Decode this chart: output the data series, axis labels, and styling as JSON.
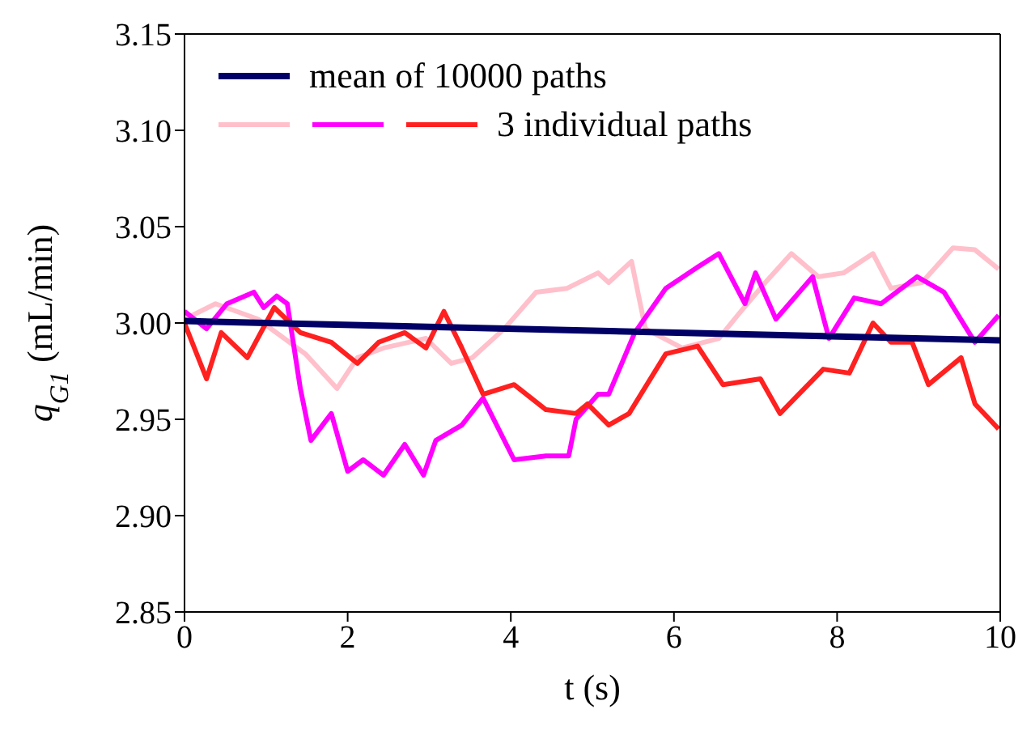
{
  "chart_data": {
    "type": "line",
    "xlabel": "t (s)",
    "ylabel": "q$_{G1}$ (mL/min)",
    "xlim": [
      0,
      10
    ],
    "xticks": [
      0,
      2,
      4,
      6,
      8,
      10
    ],
    "ylim": [
      2.85,
      3.15
    ],
    "yticks": [
      2.85,
      {
        "value": 2.9,
        "label": "2.90"
      },
      2.95,
      {
        "value": 3.0,
        "label": "3.00"
      },
      3.05,
      {
        "value": 3.1,
        "label": "3.10"
      },
      3.15
    ],
    "grid": false,
    "legend": "top left",
    "marker": "none",
    "line_style": "solid",
    "series": [
      {
        "color": "#ffc0cb",
        "x": [
          0,
          0.38,
          0.9,
          1.48,
          1.87,
          2.12,
          2.44,
          2.96,
          3.27,
          3.53,
          3.92,
          4.31,
          4.69,
          5.07,
          5.2,
          5.48,
          5.65,
          6.1,
          6.55,
          6.8,
          7.12,
          7.44,
          7.77,
          8.08,
          8.44,
          8.66,
          9.04,
          9.42,
          9.69,
          9.98
        ],
        "values": [
          3.002,
          3.01,
          3.002,
          2.984,
          2.966,
          2.982,
          2.987,
          2.992,
          2.979,
          2.982,
          2.997,
          3.016,
          3.018,
          3.026,
          3.021,
          3.032,
          2.997,
          2.987,
          2.992,
          3.005,
          3.021,
          3.036,
          3.024,
          3.026,
          3.036,
          3.018,
          3.021,
          3.039,
          3.038,
          3.028
        ]
      },
      {
        "color": "#ff00ff",
        "x": [
          0,
          0.27,
          0.52,
          0.85,
          0.97,
          1.13,
          1.26,
          1.42,
          1.55,
          1.8,
          2.0,
          2.19,
          2.44,
          2.7,
          2.93,
          3.08,
          3.4,
          3.66,
          4.04,
          4.43,
          4.71,
          4.8,
          5.07,
          5.2,
          5.52,
          5.9,
          6.29,
          6.55,
          6.87,
          7.0,
          7.25,
          7.7,
          7.9,
          8.21,
          8.54,
          8.98,
          9.31,
          9.69,
          9.98
        ],
        "values": [
          3.006,
          2.997,
          3.01,
          3.016,
          3.008,
          3.014,
          3.01,
          2.966,
          2.939,
          2.953,
          2.923,
          2.929,
          2.921,
          2.937,
          2.921,
          2.939,
          2.947,
          2.961,
          2.929,
          2.931,
          2.931,
          2.95,
          2.963,
          2.963,
          2.995,
          3.018,
          3.029,
          3.036,
          3.01,
          3.026,
          3.002,
          3.024,
          2.992,
          3.013,
          3.01,
          3.024,
          3.016,
          2.99,
          3.004
        ]
      },
      {
        "name": "3 individual paths",
        "color": "#ff2020",
        "x": [
          0,
          0.27,
          0.45,
          0.77,
          1.1,
          1.42,
          1.8,
          2.12,
          2.38,
          2.7,
          2.96,
          3.18,
          3.4,
          3.66,
          4.04,
          4.43,
          4.8,
          4.94,
          5.2,
          5.45,
          5.9,
          6.29,
          6.6,
          7.06,
          7.3,
          7.83,
          8.15,
          8.44,
          8.66,
          8.92,
          9.12,
          9.52,
          9.69,
          9.98
        ],
        "values": [
          3.0,
          2.971,
          2.995,
          2.982,
          3.008,
          2.995,
          2.99,
          2.979,
          2.99,
          2.995,
          2.987,
          3.006,
          2.987,
          2.963,
          2.968,
          2.955,
          2.953,
          2.958,
          2.947,
          2.953,
          2.984,
          2.988,
          2.968,
          2.971,
          2.953,
          2.976,
          2.974,
          3.0,
          2.99,
          2.99,
          2.968,
          2.982,
          2.958,
          2.945
        ]
      },
      {
        "name": "mean of 10000 paths",
        "color": "#000066",
        "x": [
          0,
          10
        ],
        "values": [
          3.001,
          2.991
        ]
      }
    ]
  }
}
